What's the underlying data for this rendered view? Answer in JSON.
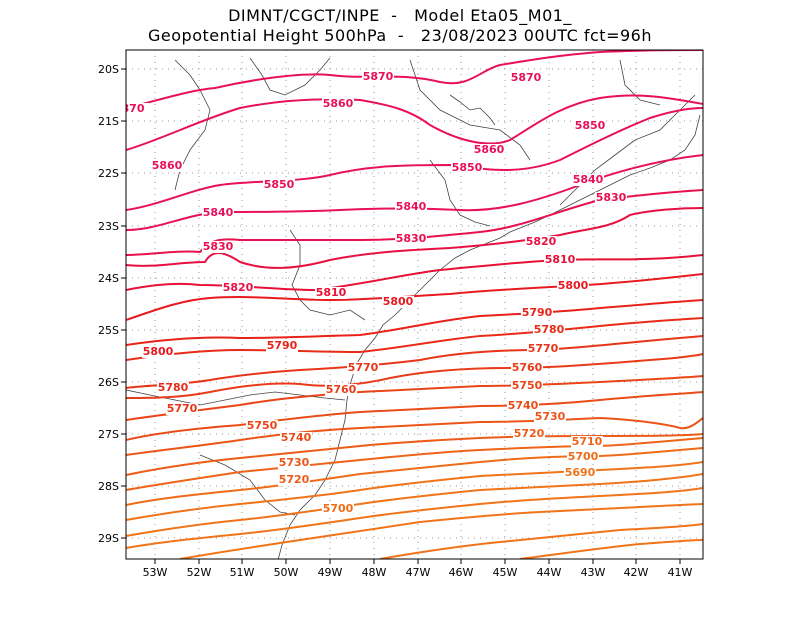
{
  "title": {
    "line1": "DIMNT/CGCT/INPE  -   Model Eta05_M01_",
    "line2": "Geopotential Height 500hPa  -   23/08/2023 00UTC fct=96h"
  },
  "axes": {
    "lon_labels": [
      "53W",
      "52W",
      "51W",
      "50W",
      "49W",
      "48W",
      "47W",
      "46W",
      "45W",
      "44W",
      "43W",
      "42W",
      "41W"
    ],
    "lat_labels": [
      "20S",
      "21S",
      "22S",
      "23S",
      "24S",
      "25S",
      "26S",
      "27S",
      "28S",
      "29S"
    ]
  },
  "contour_colors": {
    "5870": "#e8105c",
    "5860": "#e8105c",
    "5850": "#e8105c",
    "5840": "#e8105c",
    "5830": "#e8104e",
    "5820": "#e81042",
    "5810": "#e81036",
    "5800": "#e81a20",
    "5790": "#e82218",
    "5780": "#e82c18",
    "5770": "#e83418",
    "5760": "#e83c18",
    "5750": "#ea4418",
    "5740": "#ea4c18",
    "5730": "#ec5418",
    "5720": "#ec5c18",
    "5710": "#ee6418",
    "5700": "#ee6c18",
    "5690": "#f07418"
  },
  "contour_labels": [
    {
      "text": "5870"
    },
    {
      "text": "5870"
    },
    {
      "text": "870"
    },
    {
      "text": "5860"
    },
    {
      "text": "5860"
    },
    {
      "text": "5860"
    },
    {
      "text": "5850"
    },
    {
      "text": "5850"
    },
    {
      "text": "5850"
    },
    {
      "text": "5840"
    },
    {
      "text": "5840"
    },
    {
      "text": "5840"
    },
    {
      "text": "5830"
    },
    {
      "text": "5830"
    },
    {
      "text": "5830"
    },
    {
      "text": "5820"
    },
    {
      "text": "5820"
    },
    {
      "text": "5810"
    },
    {
      "text": "5810"
    },
    {
      "text": "5800"
    },
    {
      "text": "5800"
    },
    {
      "text": "5800"
    },
    {
      "text": "5790"
    },
    {
      "text": "5790"
    },
    {
      "text": "5780"
    },
    {
      "text": "5780"
    },
    {
      "text": "5770"
    },
    {
      "text": "5770"
    },
    {
      "text": "5770"
    },
    {
      "text": "5760"
    },
    {
      "text": "5760"
    },
    {
      "text": "5750"
    },
    {
      "text": "5750"
    },
    {
      "text": "5740"
    },
    {
      "text": "5740"
    },
    {
      "text": "5730"
    },
    {
      "text": "5730"
    },
    {
      "text": "5720"
    },
    {
      "text": "5720"
    },
    {
      "text": "5710"
    },
    {
      "text": "5700"
    },
    {
      "text": "5700"
    },
    {
      "text": "5690"
    }
  ]
}
